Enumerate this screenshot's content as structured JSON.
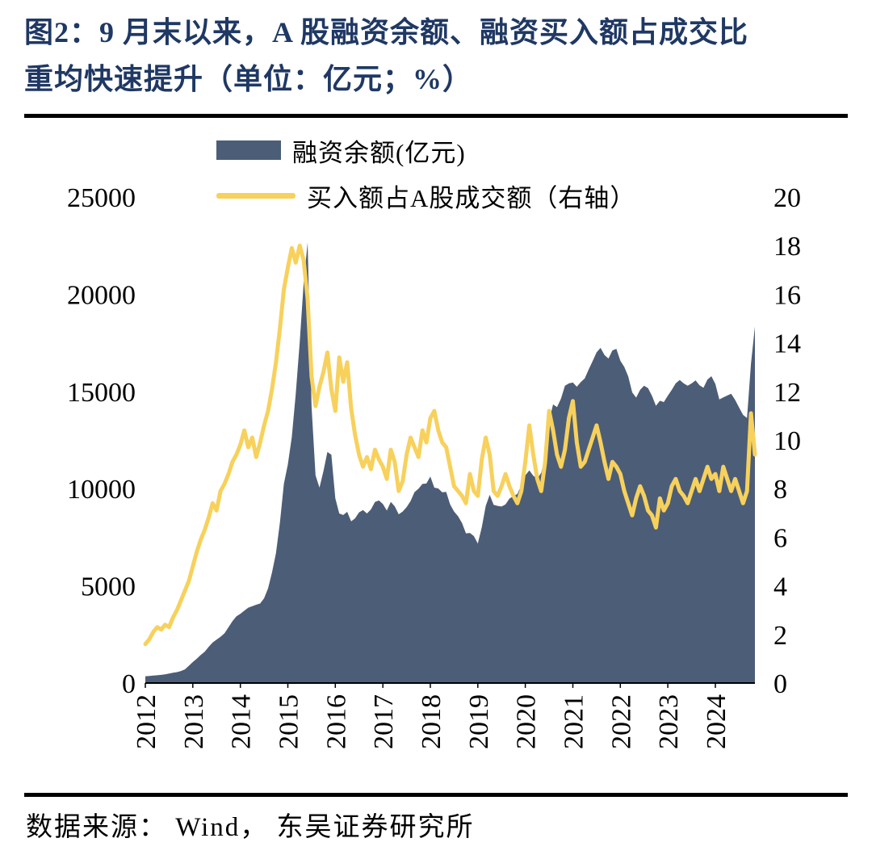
{
  "title": {
    "line1": "图2：9 月末以来，A 股融资余额、融资买入额占成交比",
    "line2": "重均快速提升（单位：亿元；%）",
    "color": "#1F3864"
  },
  "source": "数据来源： Wind， 东吴证券研究所",
  "chart_data": {
    "type": "area-line-combo",
    "x_start_year": 2012,
    "x_step_months": 1,
    "x_ticks": [
      "2012",
      "2013",
      "2014",
      "2015",
      "2016",
      "2017",
      "2018",
      "2019",
      "2020",
      "2021",
      "2022",
      "2023",
      "2024"
    ],
    "left_axis": {
      "ticks": [
        0,
        5000,
        10000,
        15000,
        20000,
        25000
      ],
      "range": [
        0,
        25000
      ],
      "unit": "亿元"
    },
    "right_axis": {
      "ticks": [
        0,
        2,
        4,
        6,
        8,
        10,
        12,
        14,
        16,
        18,
        20
      ],
      "range": [
        0,
        20
      ],
      "unit": "%"
    },
    "legend_position": "top-left",
    "grid": false,
    "series": [
      {
        "name": "融资余额(亿元)",
        "type": "area",
        "axis": "left",
        "color": "#4C5D77",
        "values": [
          350,
          365,
          380,
          400,
          420,
          450,
          490,
          530,
          560,
          620,
          700,
          890,
          1080,
          1250,
          1440,
          1610,
          1860,
          2080,
          2230,
          2380,
          2560,
          2870,
          3180,
          3430,
          3560,
          3720,
          3880,
          3950,
          4030,
          4090,
          4360,
          4870,
          5690,
          6680,
          8260,
          10250,
          11240,
          12650,
          14870,
          17520,
          20570,
          22660,
          14200,
          10680,
          10050,
          10900,
          11890,
          11740,
          9500,
          8720,
          8640,
          8810,
          8320,
          8470,
          8780,
          8900,
          8720,
          8930,
          9310,
          9390,
          9210,
          8870,
          9320,
          9090,
          8680,
          8820,
          9050,
          9360,
          9820,
          9990,
          10240,
          10260,
          10620,
          10050,
          10010,
          9810,
          9830,
          9190,
          8820,
          8580,
          8230,
          7700,
          7720,
          7560,
          7170,
          8010,
          9110,
          9680,
          9170,
          9110,
          9080,
          9190,
          9490,
          9620,
          9720,
          10190,
          10680,
          10940,
          10660,
          10520,
          10810,
          11640,
          13480,
          14330,
          14190,
          14630,
          15290,
          15410,
          15460,
          15240,
          15480,
          15670,
          16130,
          16560,
          17010,
          17240,
          16870,
          16690,
          17110,
          17190,
          16580,
          16260,
          15770,
          14950,
          14680,
          15080,
          15290,
          15170,
          14770,
          14260,
          14520,
          14450,
          14780,
          15080,
          15420,
          15590,
          15410,
          15290,
          15410,
          15570,
          15310,
          15190,
          15610,
          15780,
          15380,
          14590,
          14690,
          14790,
          14880,
          14560,
          14170,
          13790,
          13630,
          16420,
          18340
        ]
      },
      {
        "name": "买入额占A股成交额（右轴）",
        "type": "line",
        "axis": "right",
        "color": "#F7D15C",
        "values": [
          1.6,
          1.8,
          2.1,
          2.3,
          2.2,
          2.4,
          2.3,
          2.7,
          3.0,
          3.4,
          3.8,
          4.2,
          4.8,
          5.4,
          5.9,
          6.3,
          6.8,
          7.4,
          7.1,
          7.9,
          8.2,
          8.6,
          9.1,
          9.4,
          9.8,
          10.4,
          9.7,
          10.1,
          9.3,
          9.9,
          10.6,
          11.2,
          12.1,
          13.2,
          14.6,
          16.2,
          17.1,
          17.9,
          17.3,
          18.0,
          17.4,
          15.8,
          12.6,
          11.4,
          12.2,
          12.8,
          13.6,
          12.1,
          11.2,
          13.4,
          12.4,
          13.2,
          11.3,
          10.2,
          9.4,
          8.9,
          9.3,
          8.8,
          9.6,
          9.2,
          8.9,
          8.4,
          9.6,
          9.1,
          7.9,
          8.3,
          9.4,
          10.1,
          9.7,
          9.3,
          10.4,
          9.9,
          10.9,
          11.2,
          10.4,
          9.9,
          9.7,
          8.9,
          8.1,
          7.9,
          7.7,
          7.4,
          8.6,
          7.9,
          7.7,
          9.2,
          10.1,
          9.4,
          7.9,
          7.7,
          8.1,
          8.6,
          8.1,
          7.7,
          7.4,
          7.9,
          9.1,
          10.6,
          9.4,
          8.4,
          7.9,
          9.1,
          11.2,
          10.4,
          9.4,
          8.9,
          9.6,
          10.9,
          11.6,
          9.9,
          8.9,
          9.1,
          9.6,
          10.1,
          10.6,
          9.9,
          9.1,
          8.4,
          9.1,
          8.9,
          8.6,
          7.9,
          7.4,
          6.9,
          7.6,
          8.1,
          7.7,
          7.1,
          6.9,
          6.4,
          7.6,
          7.1,
          7.4,
          8.1,
          8.4,
          7.9,
          7.7,
          7.4,
          7.9,
          8.4,
          7.9,
          8.4,
          8.9,
          8.4,
          8.6,
          7.9,
          8.9,
          8.4,
          7.9,
          8.4,
          7.9,
          7.4,
          7.9,
          11.1,
          9.4
        ]
      }
    ]
  }
}
